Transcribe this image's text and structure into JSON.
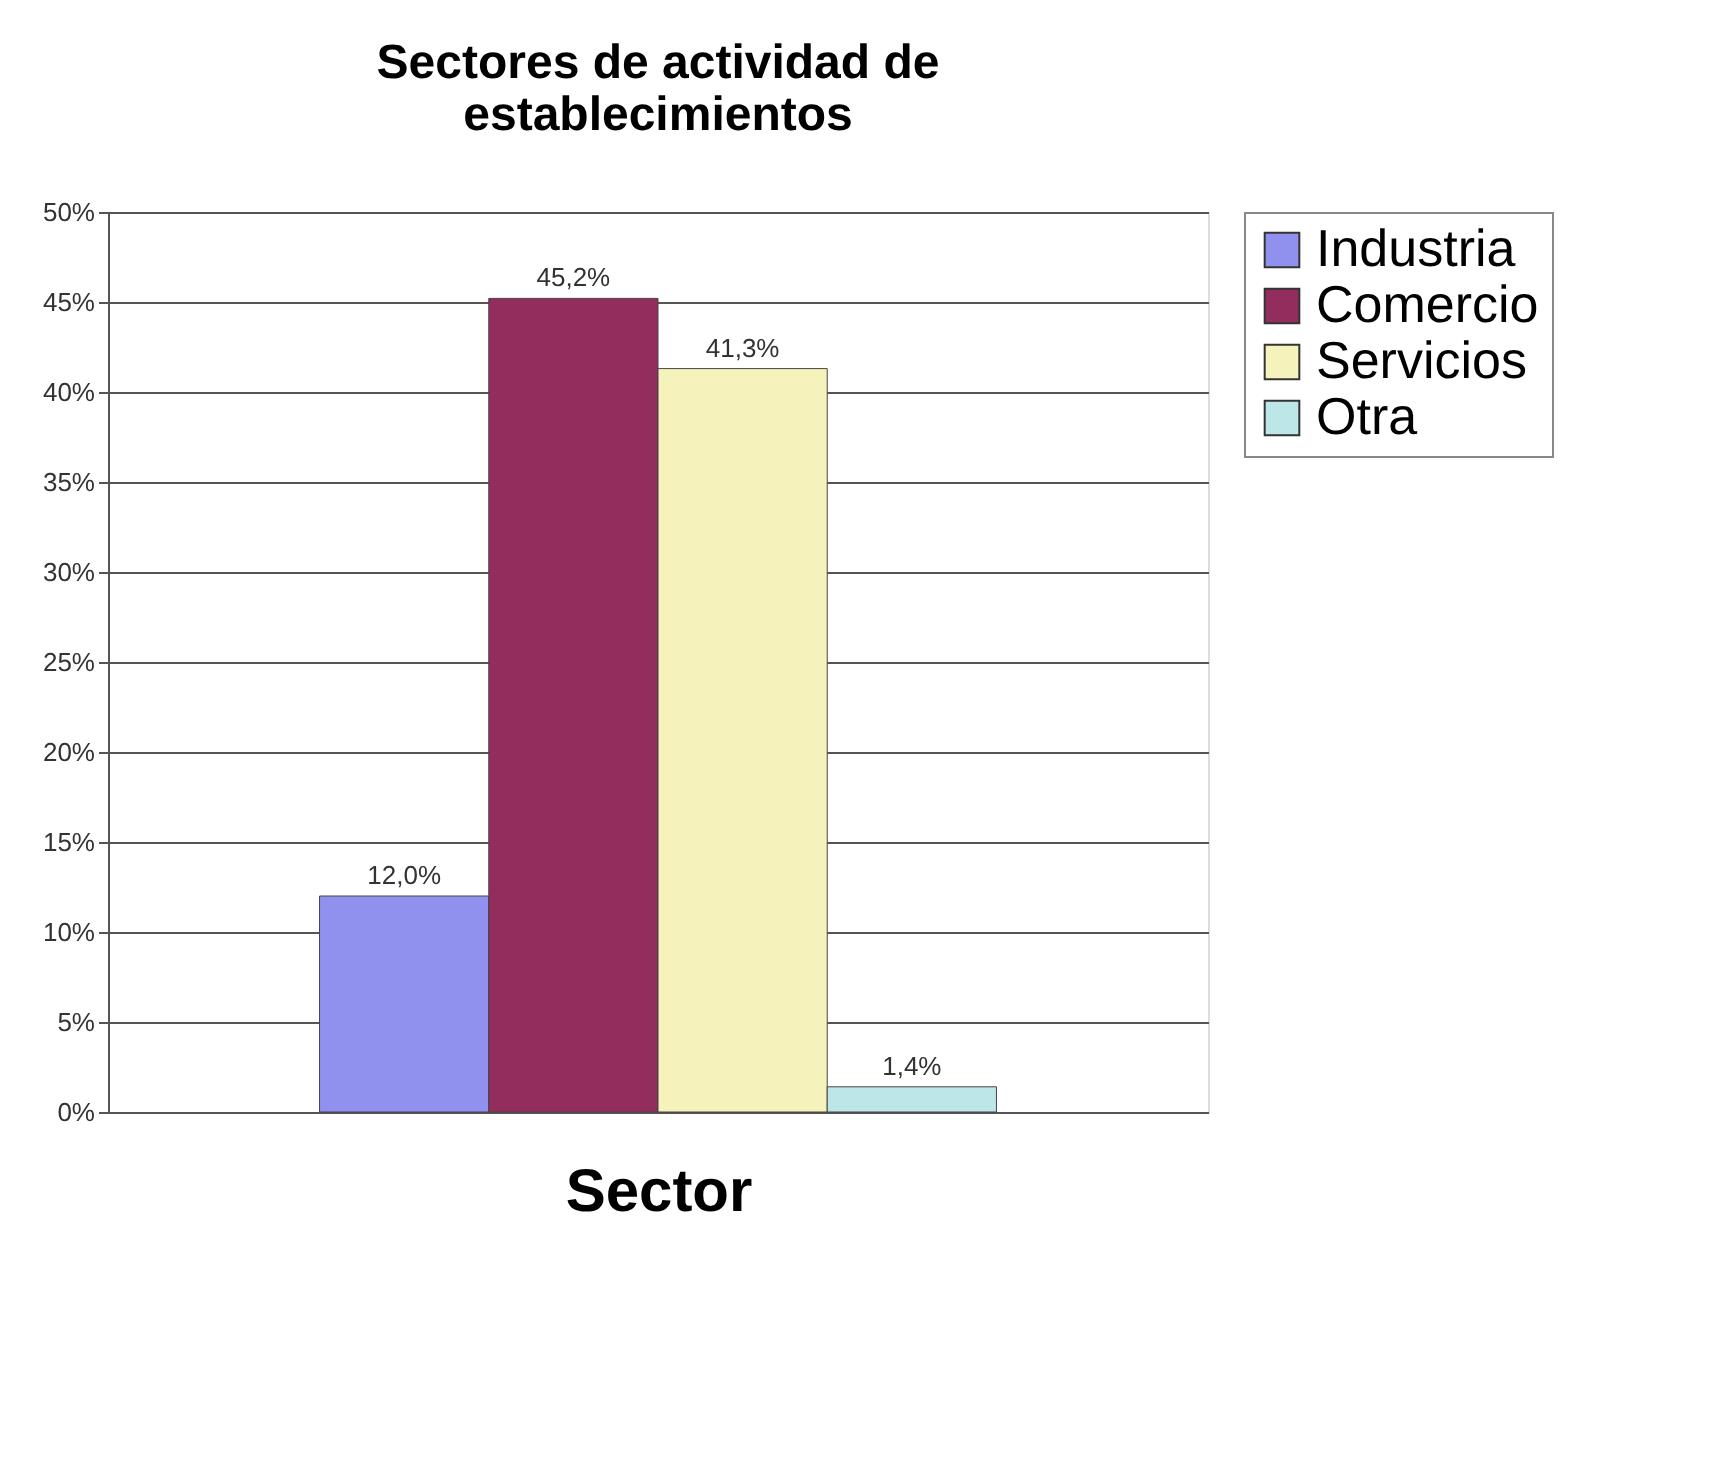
{
  "chart_data": {
    "type": "bar",
    "title": "Sectores de actividad de establecimientos",
    "xlabel": "Sector",
    "categories": [
      null
    ],
    "series": [
      {
        "name": "Industria",
        "color": "#9090ee",
        "values": [
          12.0
        ],
        "value_labels": [
          "12,0%"
        ]
      },
      {
        "name": "Comercio",
        "color": "#932d5e",
        "values": [
          45.2
        ],
        "value_labels": [
          "45,2%"
        ]
      },
      {
        "name": "Servicios",
        "color": "#f5f3bb",
        "values": [
          41.3
        ],
        "value_labels": [
          "41,3%"
        ]
      },
      {
        "name": "Otra",
        "color": "#bde6e8",
        "values": [
          1.4
        ],
        "value_labels": [
          "1,4%"
        ]
      }
    ],
    "ylim": [
      0,
      50
    ],
    "yticks": [
      {
        "value": 0,
        "label": "0%"
      },
      {
        "value": 5,
        "label": "5%"
      },
      {
        "value": 10,
        "label": "10%"
      },
      {
        "value": 15,
        "label": "15%"
      },
      {
        "value": 20,
        "label": "20%"
      },
      {
        "value": 25,
        "label": "25%"
      },
      {
        "value": 30,
        "label": "30%"
      },
      {
        "value": 35,
        "label": "35%"
      },
      {
        "value": 40,
        "label": "40%"
      },
      {
        "value": 45,
        "label": "45%"
      },
      {
        "value": 50,
        "label": "50%"
      }
    ],
    "grid": "y",
    "legend": "right"
  }
}
